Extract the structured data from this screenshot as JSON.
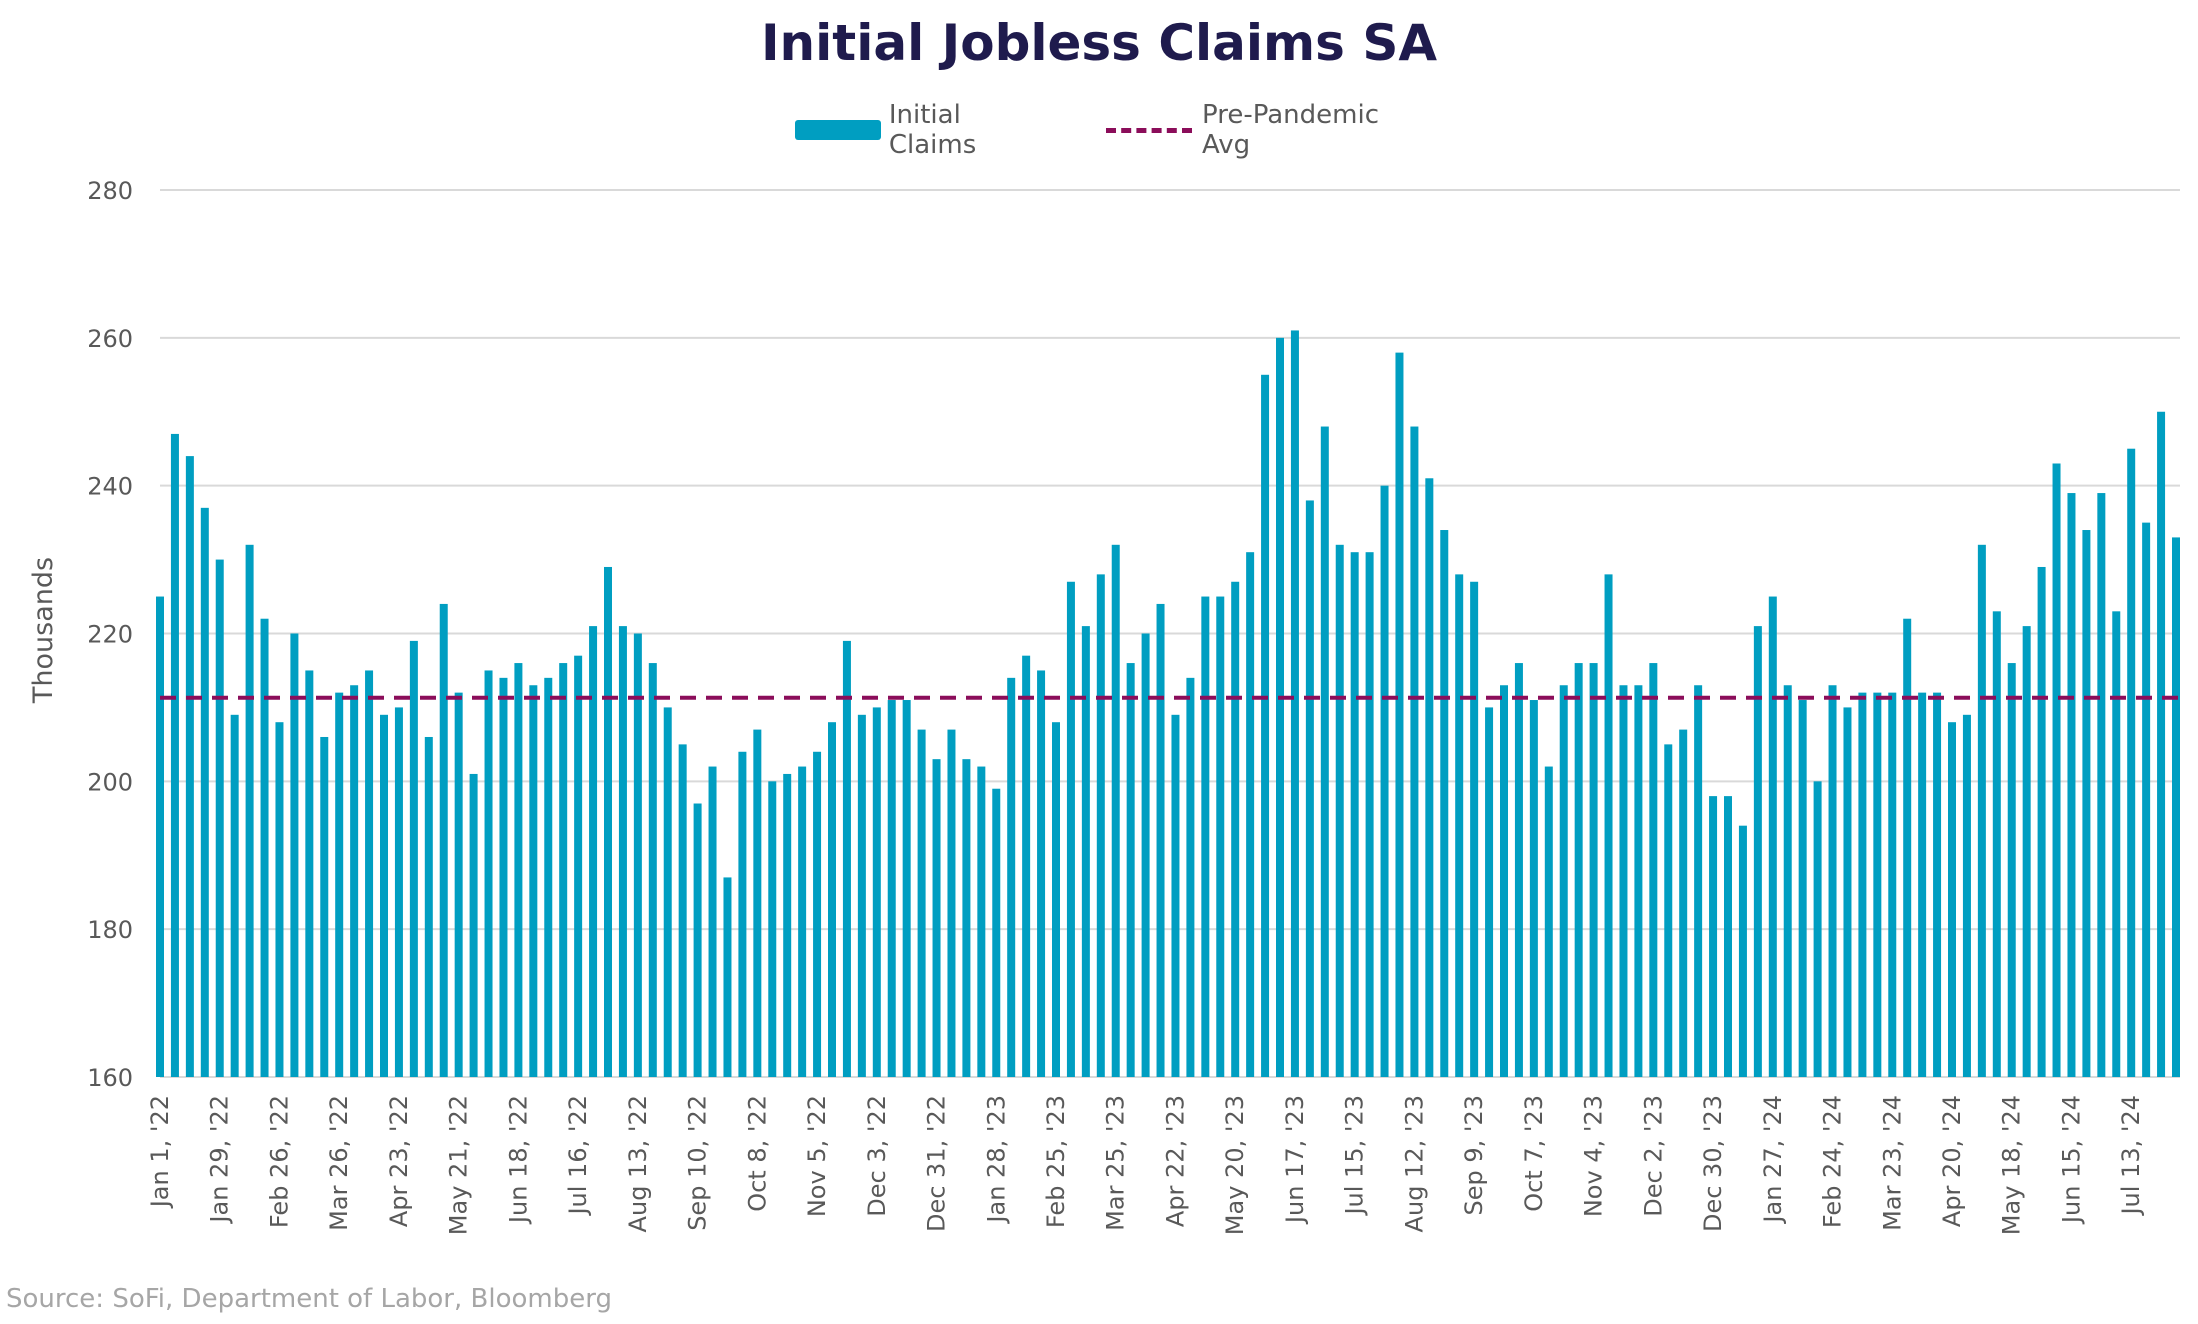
{
  "chart_data": {
    "type": "bar",
    "title": "Initial Jobless Claims SA",
    "ylabel": "Thousands",
    "ylim": [
      160,
      280
    ],
    "yticks": [
      160,
      180,
      200,
      220,
      240,
      260,
      280
    ],
    "grid": true,
    "legend_position": "top-center",
    "series": [
      {
        "name": "Initial Claims",
        "type": "bar",
        "color": "#009ec1",
        "values": [
          225,
          247,
          244,
          237,
          230,
          209,
          232,
          222,
          208,
          220,
          215,
          206,
          212,
          213,
          215,
          209,
          210,
          219,
          206,
          224,
          212,
          201,
          215,
          214,
          216,
          213,
          214,
          216,
          217,
          221,
          229,
          221,
          220,
          216,
          210,
          205,
          197,
          202,
          187,
          204,
          207,
          200,
          201,
          202,
          204,
          208,
          219,
          209,
          210,
          211,
          211,
          207,
          203,
          207,
          203,
          202,
          199,
          214,
          217,
          215,
          208,
          227,
          221,
          228,
          232,
          216,
          220,
          224,
          209,
          214,
          225,
          225,
          227,
          231,
          255,
          260,
          261,
          238,
          248,
          232,
          231,
          231,
          240,
          258,
          248,
          241,
          234,
          228,
          227,
          210,
          213,
          216,
          211,
          202,
          213,
          216,
          216,
          228,
          213,
          213,
          216,
          205,
          207,
          213,
          198,
          198,
          194,
          221,
          225,
          213,
          211,
          200,
          213,
          210,
          212,
          212,
          212,
          222,
          212,
          212,
          208,
          209,
          232,
          223,
          216,
          221,
          229,
          243,
          239,
          234,
          239,
          223,
          245,
          235,
          250,
          233
        ]
      },
      {
        "name": "Pre-Pandemic Avg",
        "type": "line",
        "style": "dashed",
        "color": "#8b0d5a",
        "value": 211.3
      }
    ],
    "x_tick_labels": [
      {
        "index": 0,
        "label": "Jan 1, '22"
      },
      {
        "index": 4,
        "label": "Jan 29, '22"
      },
      {
        "index": 8,
        "label": "Feb 26, '22"
      },
      {
        "index": 12,
        "label": "Mar 26, '22"
      },
      {
        "index": 16,
        "label": "Apr 23, '22"
      },
      {
        "index": 20,
        "label": "May 21, '22"
      },
      {
        "index": 24,
        "label": "Jun 18, '22"
      },
      {
        "index": 28,
        "label": "Jul 16, '22"
      },
      {
        "index": 32,
        "label": "Aug 13, '22"
      },
      {
        "index": 36,
        "label": "Sep 10, '22"
      },
      {
        "index": 40,
        "label": "Oct 8, '22"
      },
      {
        "index": 44,
        "label": "Nov 5, '22"
      },
      {
        "index": 48,
        "label": "Dec 3, '22"
      },
      {
        "index": 52,
        "label": "Dec 31, '22"
      },
      {
        "index": 56,
        "label": "Jan 28, '23"
      },
      {
        "index": 60,
        "label": "Feb 25, '23"
      },
      {
        "index": 64,
        "label": "Mar 25, '23"
      },
      {
        "index": 68,
        "label": "Apr 22, '23"
      },
      {
        "index": 72,
        "label": "May 20, '23"
      },
      {
        "index": 76,
        "label": "Jun 17, '23"
      },
      {
        "index": 80,
        "label": "Jul 15, '23"
      },
      {
        "index": 84,
        "label": "Aug 12, '23"
      },
      {
        "index": 88,
        "label": "Sep 9, '23"
      },
      {
        "index": 92,
        "label": "Oct 7, '23"
      },
      {
        "index": 96,
        "label": "Nov 4, '23"
      },
      {
        "index": 100,
        "label": "Dec 2, '23"
      },
      {
        "index": 104,
        "label": "Dec 30, '23"
      },
      {
        "index": 108,
        "label": "Jan 27, '24"
      },
      {
        "index": 112,
        "label": "Feb 24, '24"
      },
      {
        "index": 116,
        "label": "Mar 23, '24"
      },
      {
        "index": 120,
        "label": "Apr 20, '24"
      },
      {
        "index": 124,
        "label": "May 18, '24"
      },
      {
        "index": 128,
        "label": "Jun 15, '24"
      },
      {
        "index": 132,
        "label": "Jul 13, '24"
      }
    ]
  },
  "legend": {
    "bar_label": "Initial Claims",
    "line_label": "Pre-Pandemic Avg"
  },
  "source": "Source: SoFi, Department of Labor, Bloomberg"
}
